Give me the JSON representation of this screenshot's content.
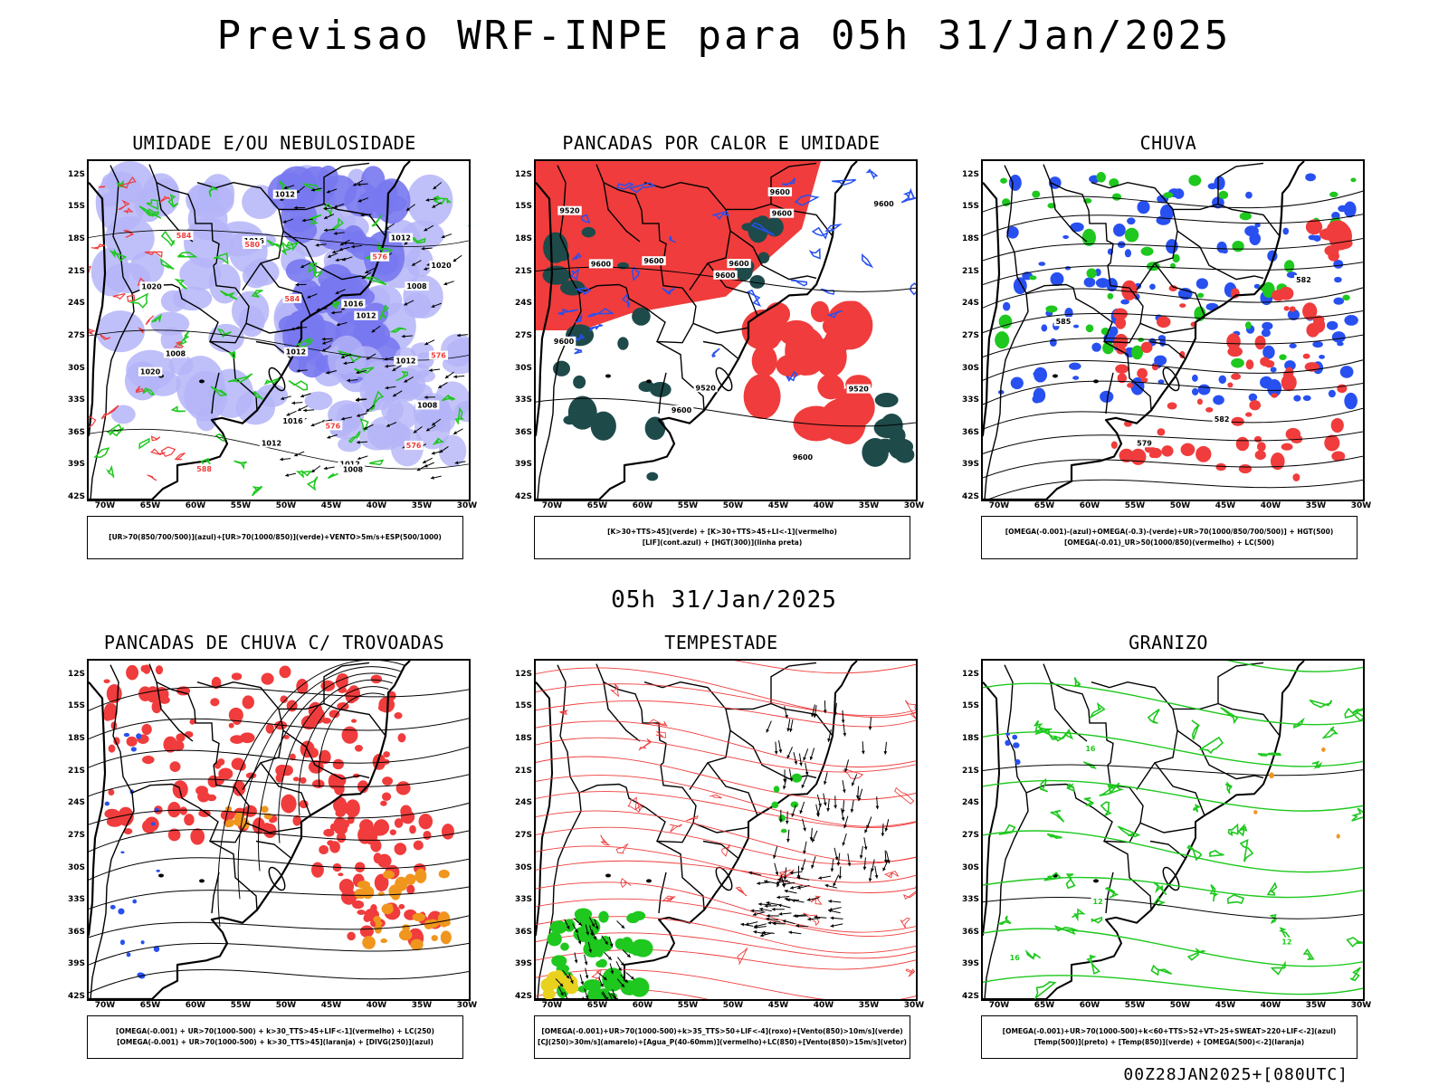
{
  "main_title": "Previsao WRF-INPE  para 05h 31/Jan/2025",
  "mid_title": "05h 31/Jan/2025",
  "footer": "00Z28JAN2025+[080UTC]",
  "latitudes": [
    "12S",
    "15S",
    "18S",
    "21S",
    "24S",
    "27S",
    "30S",
    "33S",
    "36S",
    "39S",
    "42S"
  ],
  "longitudes": [
    "70W",
    "65W",
    "60W",
    "55W",
    "50W",
    "45W",
    "40W",
    "35W",
    "30W"
  ],
  "colors": {
    "blue_humidity": "#7878f0",
    "light_blue": "#b4b4f8",
    "green": "#1ec81e",
    "red": "#f03c3c",
    "dark_teal": "#1e4a4a",
    "orange": "#f0961e",
    "yellow": "#e8d21e",
    "blue_contour": "#2850f0"
  },
  "panels": [
    {
      "title": "UMIDADE E/OU NEBULOSIDADE",
      "legend": [
        "[UR>70(850/700/500)](azul)+[UR>70(1000/850)](verde)+VENTO>5m/s+ESP(500/1000)"
      ],
      "contour_labels": [
        "1008",
        "1012",
        "1012",
        "1008",
        "1016",
        "1012",
        "1020",
        "1008",
        "1012",
        "1012",
        "1012",
        "1016",
        "1012",
        "1008",
        "1016",
        "1020",
        "1020",
        "576",
        "576",
        "576",
        "580",
        "584",
        "588",
        "584",
        "576"
      ]
    },
    {
      "title": "PANCADAS POR CALOR E UMIDADE",
      "legend": [
        "[K>30+TTS>45](verde) + [K>30+TTS>45+LI<-1](vermelho)",
        "[LIF](cont.azul) + [HGT(300)](linha preta)"
      ],
      "contour_labels": [
        "9600",
        "9600",
        "9600",
        "9600",
        "9600",
        "9600",
        "9600",
        "9600",
        "9600",
        "9520",
        "9520",
        "9520",
        "9600"
      ]
    },
    {
      "title": "CHUVA",
      "legend": [
        "[OMEGA(-0.001)-(azul)+OMEGA(-0.3)-(verde)+UR>70(1000/850/700/500)] + HGT(500)",
        "[OMEGA(-0.01)_UR>50(1000/850)(vermelho) + LC(500)"
      ],
      "contour_labels": [
        "582",
        "585",
        "582",
        "579"
      ]
    },
    {
      "title": "PANCADAS DE CHUVA C/ TROVOADAS",
      "legend": [
        "[OMEGA(-0.001) + UR>70(1000-500) + k>30_TTS>45+LIF<-1](vermelho) + LC(250)",
        "[OMEGA(-0.001) + UR>70(1000-500) + k>30_TTS>45](laranja) + [DIVG(250)](azul)"
      ],
      "contour_labels": []
    },
    {
      "title": "TEMPESTADE",
      "legend": [
        "[OMEGA(-0.001)+UR>70(1000-500)+k>35_TTS>50+LIF<-4](roxo)+[Vento(850)>10m/s](verde)",
        "[CJ(250)>30m/s](amarelo)+[Agua_P(40-60mm)](vermelho)+LC(850)+[Vento(850)>15m/s](vetor)"
      ],
      "contour_labels": []
    },
    {
      "title": "GRANIZO",
      "legend": [
        "[OMEGA(-0.001)+UR>70(1000-500)+k<60+TTS>52+VT>25+SWEAT>220+LIF<-2](azul)",
        "[Temp(500)](preto) + [Temp(850)](verde) + [OMEGA(500)<-2](laranja)"
      ],
      "contour_labels": [
        "12",
        "16",
        "16",
        "12"
      ]
    }
  ]
}
